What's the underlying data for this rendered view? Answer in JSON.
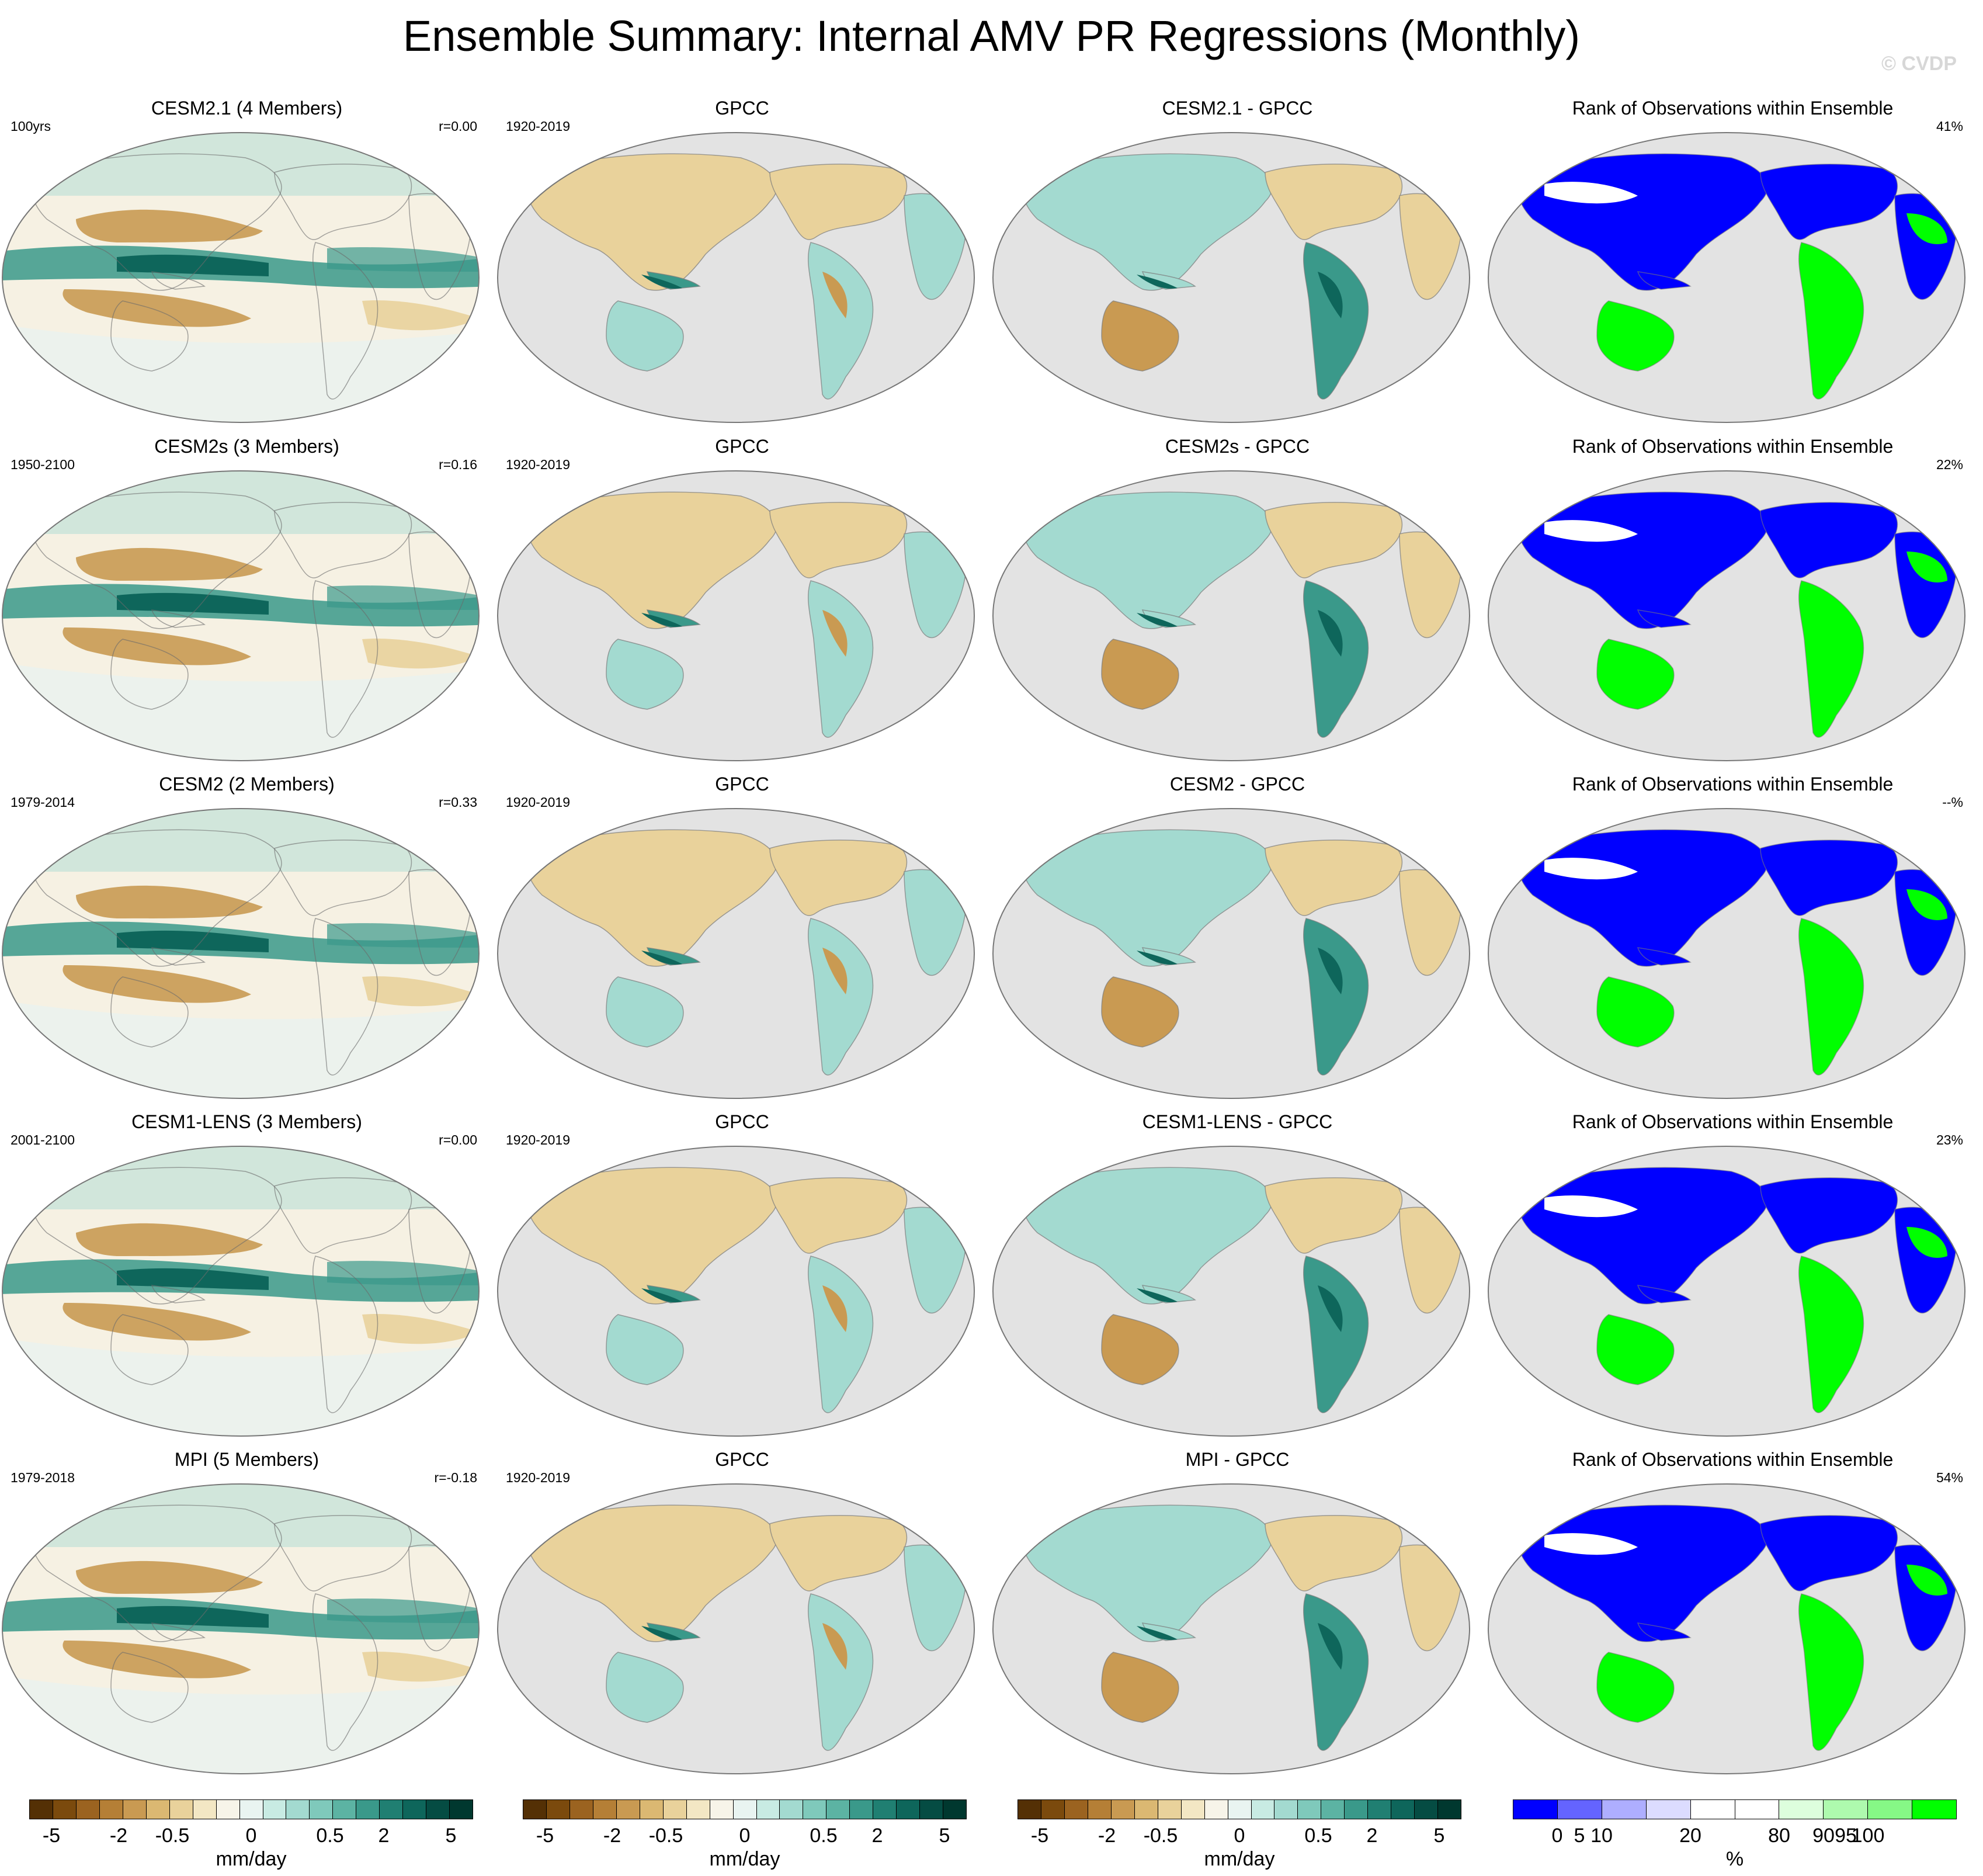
{
  "title": "Ensemble Summary: Internal AMV PR Regressions (Monthly)",
  "watermark": "© CVDP",
  "rows": [
    {
      "model": {
        "title": "CESM2.1 (4 Members)",
        "period": "100yrs",
        "stat": "r=0.00"
      },
      "obs": {
        "title": "GPCC",
        "period": "1920-2019"
      },
      "diff": {
        "title": "CESM2.1 - GPCC"
      },
      "rank": {
        "title": "Rank of Observations within Ensemble",
        "stat": "41%"
      }
    },
    {
      "model": {
        "title": "CESM2s (3 Members)",
        "period": "1950-2100",
        "stat": "r=0.16"
      },
      "obs": {
        "title": "GPCC",
        "period": "1920-2019"
      },
      "diff": {
        "title": "CESM2s - GPCC"
      },
      "rank": {
        "title": "Rank of Observations within Ensemble",
        "stat": "22%"
      }
    },
    {
      "model": {
        "title": "CESM2 (2 Members)",
        "period": "1979-2014",
        "stat": "r=0.33"
      },
      "obs": {
        "title": "GPCC",
        "period": "1920-2019"
      },
      "diff": {
        "title": "CESM2 - GPCC"
      },
      "rank": {
        "title": "Rank of Observations within Ensemble",
        "stat": "--%"
      }
    },
    {
      "model": {
        "title": "CESM1-LENS (3 Members)",
        "period": "2001-2100",
        "stat": "r=0.00"
      },
      "obs": {
        "title": "GPCC",
        "period": "1920-2019"
      },
      "diff": {
        "title": "CESM1-LENS - GPCC"
      },
      "rank": {
        "title": "Rank of Observations within Ensemble",
        "stat": "23%"
      }
    },
    {
      "model": {
        "title": "MPI (5 Members)",
        "period": "1979-2018",
        "stat": "r=-0.18"
      },
      "obs": {
        "title": "GPCC",
        "period": "1920-2019"
      },
      "diff": {
        "title": "MPI - GPCC"
      },
      "rank": {
        "title": "Rank of Observations within Ensemble",
        "stat": "54%"
      }
    }
  ],
  "colorbars": {
    "pr": {
      "unit": "mm/day",
      "colors": [
        "#543005",
        "#7b4a0d",
        "#9b6320",
        "#b57f36",
        "#c99a52",
        "#dbb872",
        "#e9d29b",
        "#f3e7c4",
        "#f7f4e9",
        "#e9f4f1",
        "#c8ebe3",
        "#a3dad0",
        "#7fc9bb",
        "#5cb3a3",
        "#3a998a",
        "#207f72",
        "#0e665b",
        "#054c43",
        "#00382f"
      ],
      "ticks": [
        "-5",
        "-2",
        "-0.5",
        "0",
        "0.5",
        "2",
        "5"
      ]
    },
    "rank": {
      "unit": "%",
      "colors": [
        "#0000ff",
        "#6464ff",
        "#aeaeff",
        "#dcdcff",
        "#ffffff",
        "#ffffff",
        "#ddfedd",
        "#aefaae",
        "#86f886",
        "#00ff00"
      ],
      "ticks": [
        "0",
        "5",
        "10",
        "20",
        "80",
        "90",
        "95",
        "100"
      ]
    }
  },
  "palette": {
    "ocean_fill": "#e3e3e3",
    "background": "#ffffff",
    "brown_dark": "#9b6320",
    "brown_mid": "#c99a52",
    "brown_light": "#e9d29b",
    "teal_dark": "#0e665b",
    "teal_mid": "#3a998a",
    "teal_light": "#a3dad0",
    "rank_blue": "#0000ff",
    "rank_green": "#00ff00"
  }
}
